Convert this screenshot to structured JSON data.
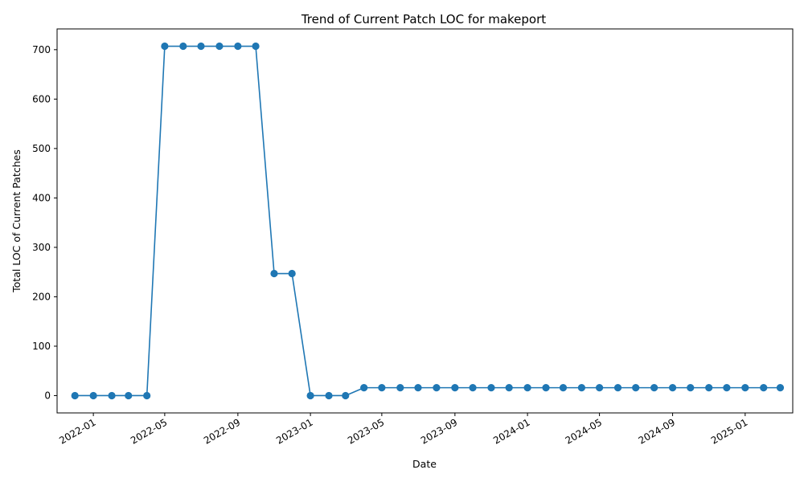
{
  "chart_data": {
    "type": "line",
    "title": "Trend of Current Patch LOC for makeport",
    "xlabel": "Date",
    "ylabel": "Total LOC of Current Patches",
    "x_ticks": [
      "2022-01",
      "2022-05",
      "2022-09",
      "2023-01",
      "2023-05",
      "2023-09",
      "2024-01",
      "2024-05",
      "2024-09",
      "2025-01"
    ],
    "y_ticks": [
      0,
      100,
      200,
      300,
      400,
      500,
      600,
      700
    ],
    "ylim": [
      -35,
      742
    ],
    "xlim": [
      "2021-11-01",
      "2025-03-22"
    ],
    "grid": false,
    "color": "#1f77b4",
    "series": [
      {
        "x": [
          "2021-12-01",
          "2022-01-01",
          "2022-02-01",
          "2022-03-01",
          "2022-04-01",
          "2022-05-01",
          "2022-06-01",
          "2022-07-01",
          "2022-08-01",
          "2022-09-01",
          "2022-10-01",
          "2022-11-01",
          "2022-12-01",
          "2023-01-01",
          "2023-02-01",
          "2023-03-01",
          "2023-04-01",
          "2023-05-01",
          "2023-06-01",
          "2023-07-01",
          "2023-08-01",
          "2023-09-01",
          "2023-10-01",
          "2023-11-01",
          "2023-12-01",
          "2024-01-01",
          "2024-02-01",
          "2024-03-01",
          "2024-04-01",
          "2024-05-01",
          "2024-06-01",
          "2024-07-01",
          "2024-08-01",
          "2024-09-01",
          "2024-10-01",
          "2024-11-01",
          "2024-12-01",
          "2025-01-01",
          "2025-02-01",
          "2025-03-01"
        ],
        "values": [
          0,
          0,
          0,
          0,
          0,
          707,
          707,
          707,
          707,
          707,
          707,
          247,
          247,
          0,
          0,
          0,
          16,
          16,
          16,
          16,
          16,
          16,
          16,
          16,
          16,
          16,
          16,
          16,
          16,
          16,
          16,
          16,
          16,
          16,
          16,
          16,
          16,
          16,
          16,
          16
        ]
      }
    ]
  }
}
